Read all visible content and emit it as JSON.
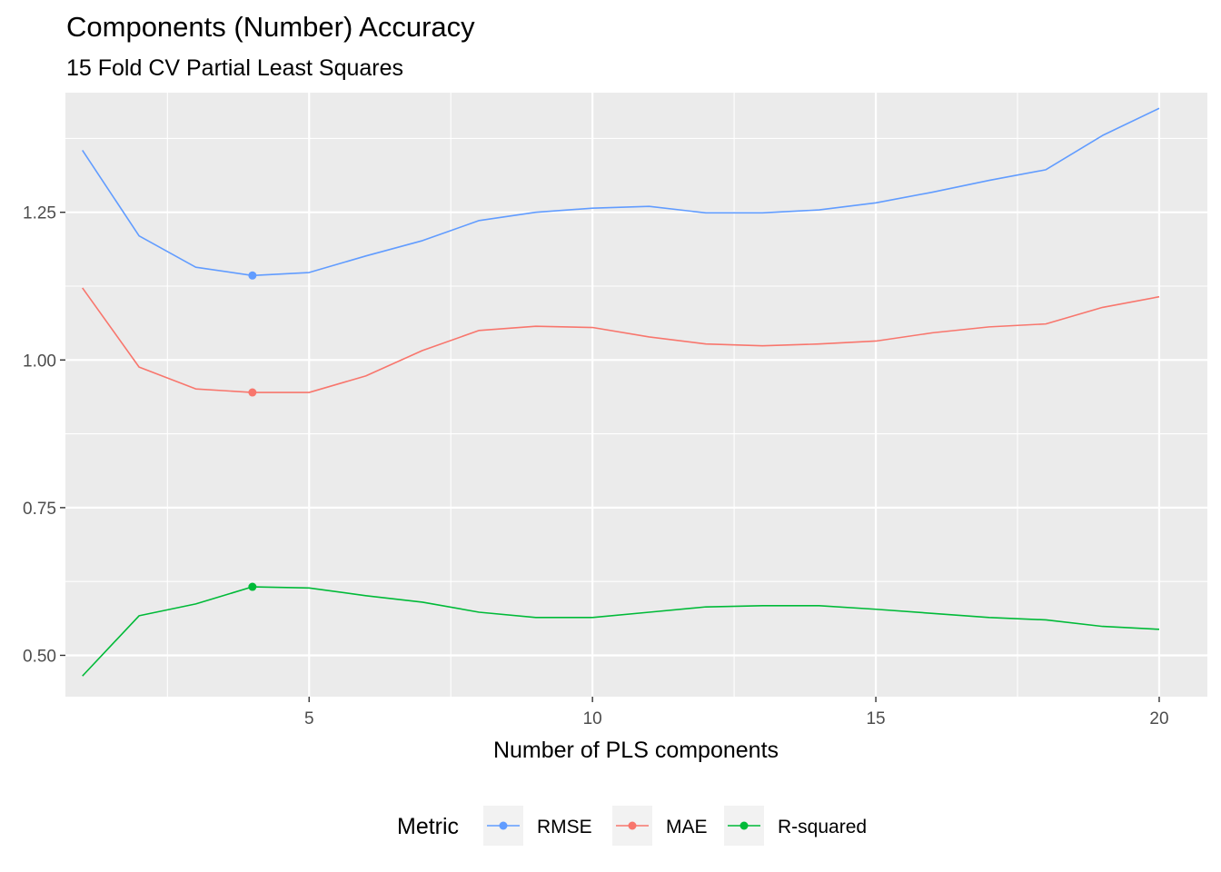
{
  "chart_data": {
    "type": "line",
    "title": "Components (Number) Accuracy",
    "subtitle": "15 Fold CV Partial Least Squares",
    "xlabel": "Number of PLS components",
    "ylabel": "",
    "xlim": [
      0.7,
      20.85
    ],
    "ylim": [
      0.43,
      1.4525
    ],
    "x_ticks": [
      5,
      10,
      15,
      20
    ],
    "y_ticks": [
      0.5,
      0.75,
      1.0,
      1.25
    ],
    "x_tick_labels": [
      "5",
      "10",
      "15",
      "20"
    ],
    "y_tick_labels": [
      "0.50",
      "0.75",
      "1.00",
      "1.25"
    ],
    "grid": true,
    "legend_position": "bottom",
    "legend_title": "Metric",
    "x": [
      1,
      2,
      3,
      4,
      5,
      6,
      7,
      8,
      9,
      10,
      11,
      12,
      13,
      14,
      15,
      16,
      17,
      18,
      19,
      20
    ],
    "series": [
      {
        "name": "RMSE",
        "color": "#619CFF",
        "values": [
          1.355,
          1.21,
          1.157,
          1.143,
          1.148,
          1.176,
          1.202,
          1.236,
          1.25,
          1.257,
          1.26,
          1.249,
          1.249,
          1.254,
          1.266,
          1.284,
          1.304,
          1.322,
          1.38,
          1.426
        ],
        "highlight_x": 4
      },
      {
        "name": "MAE",
        "color": "#F8766D",
        "values": [
          1.122,
          0.988,
          0.951,
          0.945,
          0.945,
          0.973,
          1.016,
          1.05,
          1.057,
          1.055,
          1.039,
          1.027,
          1.024,
          1.027,
          1.032,
          1.046,
          1.056,
          1.061,
          1.089,
          1.107
        ],
        "highlight_x": 4
      },
      {
        "name": "R-squared",
        "color": "#00BA38",
        "values": [
          0.465,
          0.567,
          0.587,
          0.616,
          0.614,
          0.601,
          0.59,
          0.573,
          0.564,
          0.564,
          0.573,
          0.582,
          0.584,
          0.584,
          0.578,
          0.571,
          0.564,
          0.56,
          0.549,
          0.544
        ],
        "highlight_x": 4
      }
    ]
  }
}
